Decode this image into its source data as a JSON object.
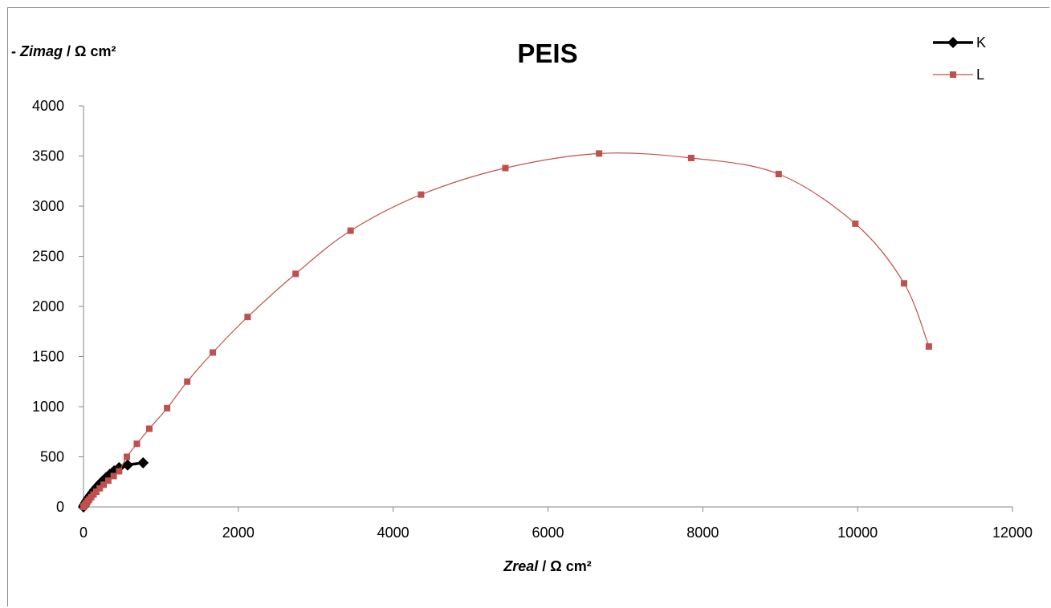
{
  "chart_data": {
    "type": "scatter",
    "title": "PEIS",
    "ylabel": {
      "prefix": "- ",
      "italic": "Zimag",
      "rest": " / Ω cm²"
    },
    "xlabel": {
      "prefix": "",
      "italic": "Zreal",
      "rest": " / Ω cm²"
    },
    "xlim": [
      0,
      12000
    ],
    "ylim": [
      0,
      4000
    ],
    "x_ticks": [
      0,
      2000,
      4000,
      6000,
      8000,
      10000,
      12000
    ],
    "y_ticks": [
      0,
      500,
      1000,
      1500,
      2000,
      2500,
      3000,
      3500,
      4000
    ],
    "grid": false,
    "legend_position": "top-right",
    "series": [
      {
        "name": "K",
        "color": "#000000",
        "marker": "diamond",
        "line": "thick",
        "x": [
          0,
          5,
          10,
          18,
          28,
          40,
          55,
          72,
          92,
          115,
          140,
          170,
          205,
          245,
          290,
          340,
          395,
          460,
          570,
          770
        ],
        "y": [
          0,
          8,
          16,
          28,
          42,
          58,
          76,
          96,
          118,
          142,
          168,
          196,
          226,
          258,
          292,
          326,
          360,
          392,
          418,
          440
        ]
      },
      {
        "name": "L",
        "color": "#c0504d",
        "marker": "square",
        "line": "smooth",
        "x": [
          0,
          5,
          10,
          18,
          28,
          40,
          55,
          75,
          100,
          130,
          165,
          210,
          260,
          320,
          390,
          460,
          560,
          690,
          850,
          1080,
          1340,
          1670,
          2120,
          2740,
          3450,
          4360,
          5450,
          6660,
          7850,
          8980,
          9970,
          10600,
          10920
        ],
        "y": [
          0,
          5,
          10,
          18,
          28,
          40,
          55,
          75,
          98,
          124,
          152,
          186,
          222,
          262,
          308,
          356,
          500,
          630,
          780,
          985,
          1250,
          1540,
          1895,
          2325,
          2755,
          3115,
          3380,
          3525,
          3480,
          3320,
          2825,
          2230,
          1600
        ]
      }
    ]
  }
}
